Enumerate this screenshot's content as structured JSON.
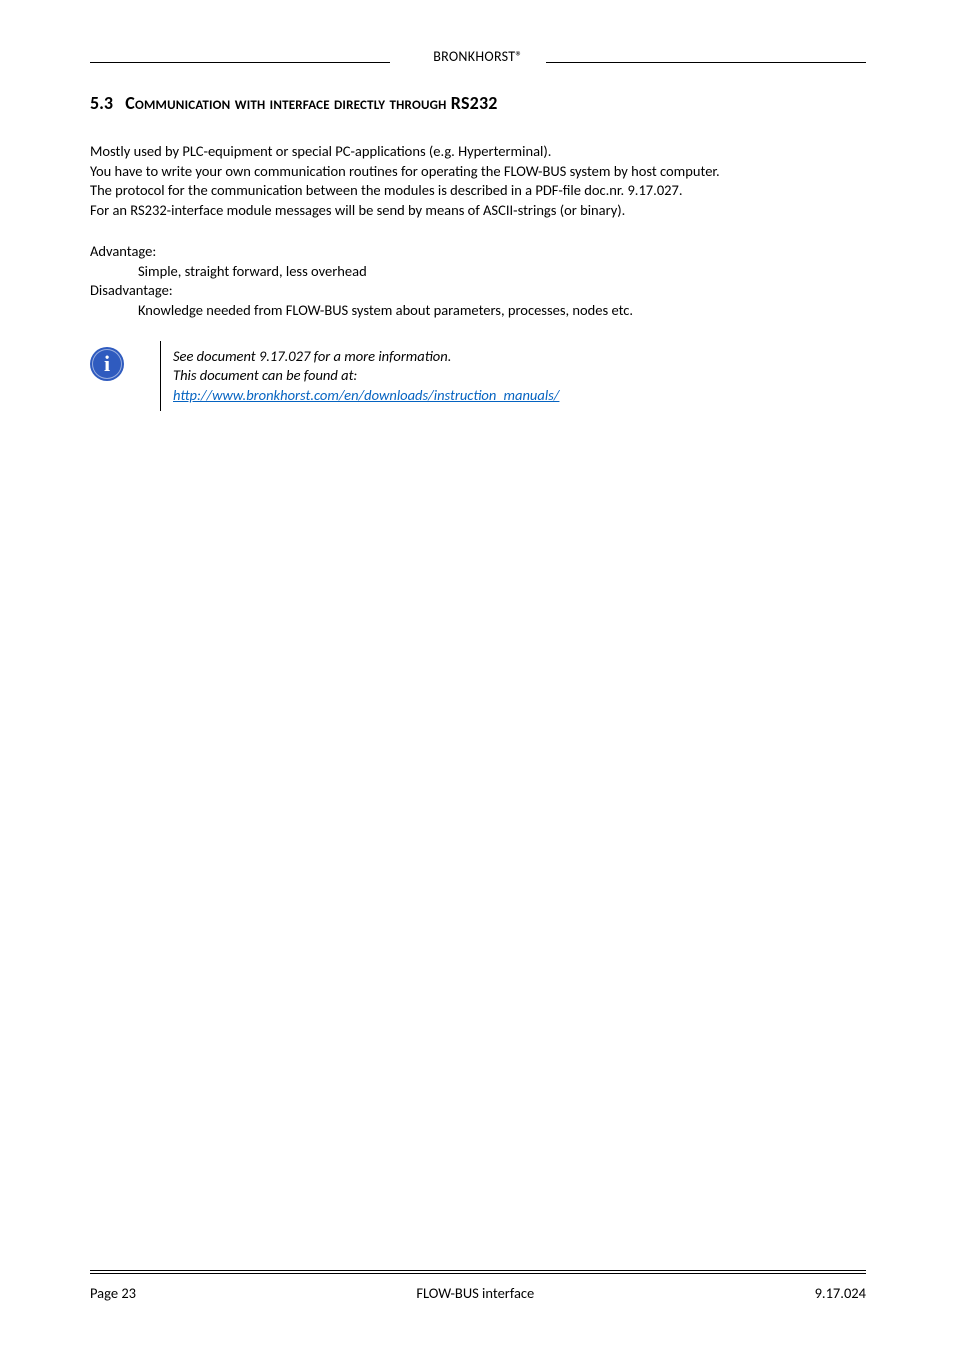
{
  "header": {
    "brand": "BRONKHORST®"
  },
  "section": {
    "number": "5.3",
    "title_smallcaps": "Communication with interface directly through RS232"
  },
  "body": {
    "p1": "Mostly used by PLC-equipment or special PC-applications (e.g. Hyperterminal).",
    "p2": "You have to write your own communication routines for operating the FLOW-BUS system by host computer.",
    "p3": "The protocol for the communication between the modules is described in a PDF-file doc.nr. 9.17.027.",
    "p4": "For an RS232-interface module messages will be send by means of ASCII-strings (or binary)."
  },
  "advantage": {
    "label": "Advantage:",
    "text": "Simple, straight forward, less overhead"
  },
  "disadvantage": {
    "label": "Disadvantage:",
    "text": "Knowledge needed from FLOW-BUS system about parameters, processes, nodes etc."
  },
  "info_note": {
    "line1": "See document 9.17.027 for a more information.",
    "line2": "This document can be found at:",
    "link_text": "http://www.bronkhorst.com/en/downloads/instruction_manuals/",
    "link_href": "http://www.bronkhorst.com/en/downloads/instruction_manuals/"
  },
  "footer": {
    "left": "Page 23",
    "center": "FLOW-BUS interface",
    "right": "9.17.024"
  },
  "colors": {
    "text": "#000000",
    "link": "#0563c1",
    "icon_bg": "#2f5bbf",
    "bg": "#ffffff"
  },
  "typography": {
    "body_fontsize_pt": 11,
    "heading_fontsize_pt": 13,
    "font_family": "Calibri"
  }
}
